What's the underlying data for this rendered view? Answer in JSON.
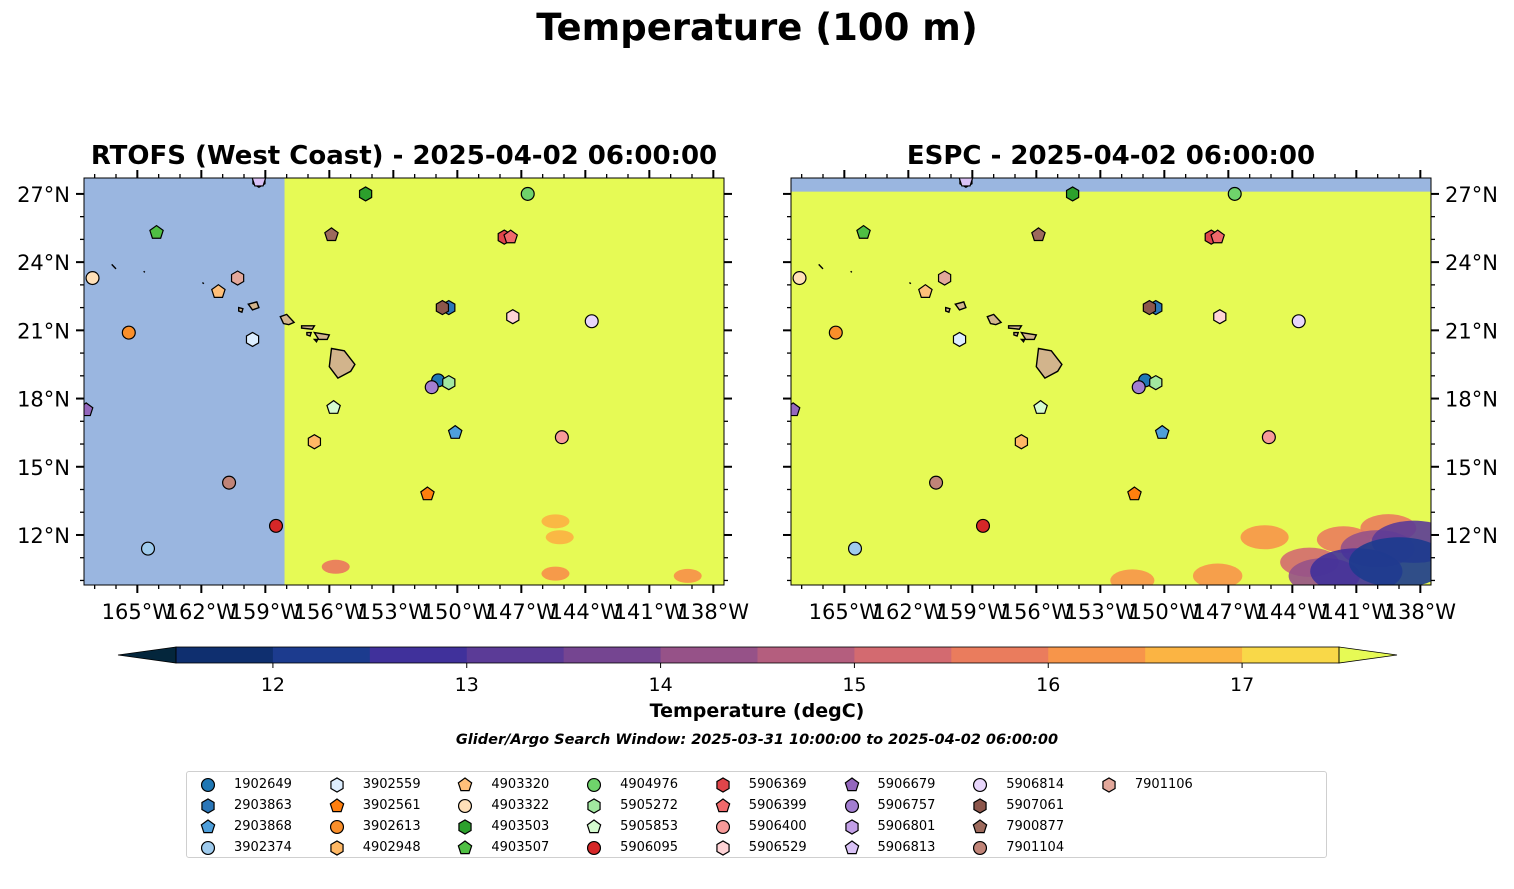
{
  "figure": {
    "title": "Temperature (100 m)",
    "search_window": "Glider/Argo Search Window: 2025-03-31 10:00:00 to 2025-04-02 06:00:00"
  },
  "colors": {
    "below_range": "#9ab6e0",
    "above_range": "#e6fa55",
    "land": "#d2b48c",
    "colorbar": [
      "#04263c",
      "#0f2f6f",
      "#1c3b8e",
      "#40319b",
      "#5b3b97",
      "#754591",
      "#965288",
      "#b45e7e",
      "#d36a70",
      "#ea7c5d",
      "#f7954a",
      "#fbb443",
      "#f9d848",
      "#e6fa55"
    ]
  },
  "colorbar": {
    "label": "Temperature (degC)",
    "min": 11.5,
    "max": 17.5,
    "step": 0.5,
    "ticks": [
      "12",
      "13",
      "14",
      "15",
      "16",
      "17"
    ],
    "extend": "both"
  },
  "chart_data": [
    {
      "type": "map",
      "title": "RTOFS (West Coast) - 2025-04-02 06:00:00",
      "xlim": [
        -167.5,
        -137.5
      ],
      "ylim": [
        9.8,
        27.7
      ],
      "x_ticks": [
        "165°W",
        "162°W",
        "159°W",
        "156°W",
        "153°W",
        "150°W",
        "147°W",
        "144°W",
        "141°W",
        "138°W"
      ],
      "x_tick_values": [
        -165,
        -162,
        -159,
        -156,
        -153,
        -150,
        -147,
        -144,
        -141,
        -138
      ],
      "y_ticks": [
        "27°N",
        "24°N",
        "21°N",
        "18°N",
        "15°N",
        "12°N"
      ],
      "y_tick_values": [
        27,
        24,
        21,
        18,
        15,
        12
      ],
      "y_axis_side": "left",
      "field_note": "values below 11.5 west of 158°W; above 17.5 elsewhere, with 16-17.5 patches near 10°N",
      "no_data_west_of": -158.1,
      "warm_patches": [
        {
          "lon": -155.7,
          "lat": 10.6,
          "value": 16.2
        },
        {
          "lon": -145.4,
          "lat": 10.3,
          "value": 16.8
        },
        {
          "lon": -139.2,
          "lat": 10.2,
          "value": 16.6
        },
        {
          "lon": -145.2,
          "lat": 11.9,
          "value": 17.0
        },
        {
          "lon": -145.4,
          "lat": 12.6,
          "value": 17.0
        }
      ]
    },
    {
      "type": "map",
      "title": "ESPC - 2025-04-02 06:00:00",
      "xlim": [
        -167.5,
        -137.5
      ],
      "ylim": [
        9.8,
        27.7
      ],
      "x_ticks": [
        "165°W",
        "162°W",
        "159°W",
        "156°W",
        "153°W",
        "150°W",
        "147°W",
        "144°W",
        "141°W",
        "138°W"
      ],
      "x_tick_values": [
        -165,
        -162,
        -159,
        -156,
        -153,
        -150,
        -147,
        -144,
        -141,
        -138
      ],
      "y_ticks": [
        "27°N",
        "24°N",
        "21°N",
        "18°N",
        "15°N",
        "12°N"
      ],
      "y_tick_values": [
        27,
        24,
        21,
        18,
        15,
        12
      ],
      "y_axis_side": "right",
      "field_note": "values above 17.5 almost everywhere; 12-16 cold region in the south-east corner",
      "no_data_north_of": 27.1,
      "cold_region": [
        {
          "lon": -141.0,
          "lat": 10.4,
          "value": 13.2
        },
        {
          "lon": -139.0,
          "lat": 10.8,
          "value": 12.6
        },
        {
          "lon": -138.3,
          "lat": 11.7,
          "value": 13.8
        },
        {
          "lon": -142.5,
          "lat": 10.2,
          "value": 14.8
        },
        {
          "lon": -140.0,
          "lat": 11.4,
          "value": 14.6
        },
        {
          "lon": -143.2,
          "lat": 10.8,
          "value": 15.8
        },
        {
          "lon": -141.6,
          "lat": 11.8,
          "value": 16.2
        },
        {
          "lon": -139.5,
          "lat": 12.3,
          "value": 16.0
        },
        {
          "lon": -145.3,
          "lat": 11.9,
          "value": 16.6
        },
        {
          "lon": -147.5,
          "lat": 10.2,
          "value": 16.5
        },
        {
          "lon": -151.5,
          "lat": 10.0,
          "value": 16.9
        }
      ]
    }
  ],
  "islands": [
    {
      "name": "Hawaii",
      "pts": [
        [
          -155.9,
          20.2
        ],
        [
          -155.3,
          20.1
        ],
        [
          -154.8,
          19.5
        ],
        [
          -155.0,
          19.2
        ],
        [
          -155.6,
          18.9
        ],
        [
          -156.0,
          19.4
        ],
        [
          -155.9,
          20.2
        ]
      ]
    },
    {
      "name": "Maui",
      "pts": [
        [
          -156.7,
          20.9
        ],
        [
          -156.0,
          20.8
        ],
        [
          -156.1,
          20.6
        ],
        [
          -156.5,
          20.6
        ],
        [
          -156.7,
          20.9
        ]
      ]
    },
    {
      "name": "Molokai",
      "pts": [
        [
          -157.3,
          21.2
        ],
        [
          -156.7,
          21.2
        ],
        [
          -156.8,
          21.05
        ],
        [
          -157.3,
          21.1
        ]
      ]
    },
    {
      "name": "Lanai",
      "pts": [
        [
          -157.05,
          20.9
        ],
        [
          -156.85,
          20.9
        ],
        [
          -156.9,
          20.75
        ],
        [
          -157.05,
          20.8
        ]
      ]
    },
    {
      "name": "Kahoolawe",
      "pts": [
        [
          -156.7,
          20.6
        ],
        [
          -156.55,
          20.6
        ],
        [
          -156.6,
          20.5
        ]
      ]
    },
    {
      "name": "Oahu",
      "pts": [
        [
          -158.3,
          21.6
        ],
        [
          -158.0,
          21.7
        ],
        [
          -157.65,
          21.35
        ],
        [
          -157.9,
          21.25
        ],
        [
          -158.15,
          21.3
        ],
        [
          -158.3,
          21.6
        ]
      ]
    },
    {
      "name": "Kauai",
      "pts": [
        [
          -159.8,
          22.15
        ],
        [
          -159.4,
          22.25
        ],
        [
          -159.3,
          22.0
        ],
        [
          -159.6,
          21.9
        ],
        [
          -159.8,
          22.15
        ]
      ]
    },
    {
      "name": "Niihau",
      "pts": [
        [
          -160.25,
          22.0
        ],
        [
          -160.05,
          21.95
        ],
        [
          -160.1,
          21.8
        ],
        [
          -160.25,
          21.85
        ]
      ]
    },
    {
      "name": "Nihoa",
      "pts": [
        [
          -161.95,
          23.1
        ],
        [
          -161.88,
          23.05
        ]
      ]
    },
    {
      "name": "NW islet",
      "pts": [
        [
          -166.2,
          23.9
        ],
        [
          -166.0,
          23.7
        ]
      ]
    },
    {
      "name": "NW islet 2",
      "pts": [
        [
          -164.7,
          23.6
        ],
        [
          -164.65,
          23.55
        ]
      ]
    }
  ],
  "floats": [
    {
      "id": "1902649",
      "marker": "circle",
      "color": "#1f77b4",
      "lon": -150.9,
      "lat": 18.8
    },
    {
      "id": "2903863",
      "marker": "hexagon",
      "color": "#2a76b8",
      "lon": -150.4,
      "lat": 22.0
    },
    {
      "id": "2903868",
      "marker": "pentagon",
      "color": "#4e9fdb",
      "lon": -150.1,
      "lat": 16.5
    },
    {
      "id": "3902374",
      "marker": "circle",
      "color": "#9fcbed",
      "lon": -164.5,
      "lat": 11.4
    },
    {
      "id": "3902559",
      "marker": "hexagon",
      "color": "#ddeeff",
      "lon": -159.6,
      "lat": 20.6
    },
    {
      "id": "3902561",
      "marker": "pentagon",
      "color": "#ff7f0e",
      "lon": -151.4,
      "lat": 13.8
    },
    {
      "id": "3902613",
      "marker": "circle",
      "color": "#fa8f2a",
      "lon": -165.4,
      "lat": 20.9
    },
    {
      "id": "4902948",
      "marker": "hexagon",
      "color": "#ffb865",
      "lon": -156.7,
      "lat": 16.1
    },
    {
      "id": "4903320",
      "marker": "pentagon",
      "color": "#ffc07a",
      "lon": -161.2,
      "lat": 22.7
    },
    {
      "id": "4903322",
      "marker": "circle",
      "color": "#ffe0b8",
      "lon": -167.1,
      "lat": 23.3
    },
    {
      "id": "4903503",
      "marker": "hexagon",
      "color": "#2ca02c",
      "lon": -154.3,
      "lat": 27.0
    },
    {
      "id": "4903507",
      "marker": "pentagon",
      "color": "#4fbf43",
      "lon": -164.1,
      "lat": 25.3
    },
    {
      "id": "4904976",
      "marker": "circle",
      "color": "#6fd36b",
      "lon": -146.7,
      "lat": 27.0
    },
    {
      "id": "5905272",
      "marker": "hexagon",
      "color": "#a2e8a0",
      "lon": -150.4,
      "lat": 18.7
    },
    {
      "id": "5905853",
      "marker": "pentagon",
      "color": "#d6fbd0",
      "lon": -155.8,
      "lat": 17.6
    },
    {
      "id": "5906095",
      "marker": "circle",
      "color": "#d62728",
      "lon": -158.5,
      "lat": 12.4
    },
    {
      "id": "5906369",
      "marker": "hexagon",
      "color": "#e0454a",
      "lon": -147.8,
      "lat": 25.1
    },
    {
      "id": "5906399",
      "marker": "pentagon",
      "color": "#f0696b",
      "lon": -147.5,
      "lat": 25.1
    },
    {
      "id": "5906400",
      "marker": "circle",
      "color": "#f79a99",
      "lon": -145.1,
      "lat": 16.3
    },
    {
      "id": "5906529",
      "marker": "hexagon",
      "color": "#ffd3d6",
      "lon": -147.4,
      "lat": 21.6
    },
    {
      "id": "5906679",
      "marker": "pentagon",
      "color": "#9467bd",
      "lon": -167.4,
      "lat": 17.5
    },
    {
      "id": "5906757",
      "marker": "circle",
      "color": "#a37ed1",
      "lon": -151.2,
      "lat": 18.5
    },
    {
      "id": "5906801",
      "marker": "hexagon",
      "color": "#c29fe6",
      "lon": -159.3,
      "lat": 27.6
    },
    {
      "id": "5906813",
      "marker": "pentagon",
      "color": "#d9c2f6",
      "lon": -159.3,
      "lat": 27.6
    },
    {
      "id": "5906814",
      "marker": "circle",
      "color": "#e8d6fb",
      "lon": -143.7,
      "lat": 21.4
    },
    {
      "id": "5907061",
      "marker": "hexagon",
      "color": "#8c564b",
      "lon": -150.7,
      "lat": 22.0
    },
    {
      "id": "7900877",
      "marker": "pentagon",
      "color": "#9d6a5c",
      "lon": -155.9,
      "lat": 25.2
    },
    {
      "id": "7901104",
      "marker": "circle",
      "color": "#c08478",
      "lon": -160.7,
      "lat": 14.3
    },
    {
      "id": "7901106",
      "marker": "hexagon",
      "color": "#e3a89b",
      "lon": -160.3,
      "lat": 23.3
    }
  ]
}
